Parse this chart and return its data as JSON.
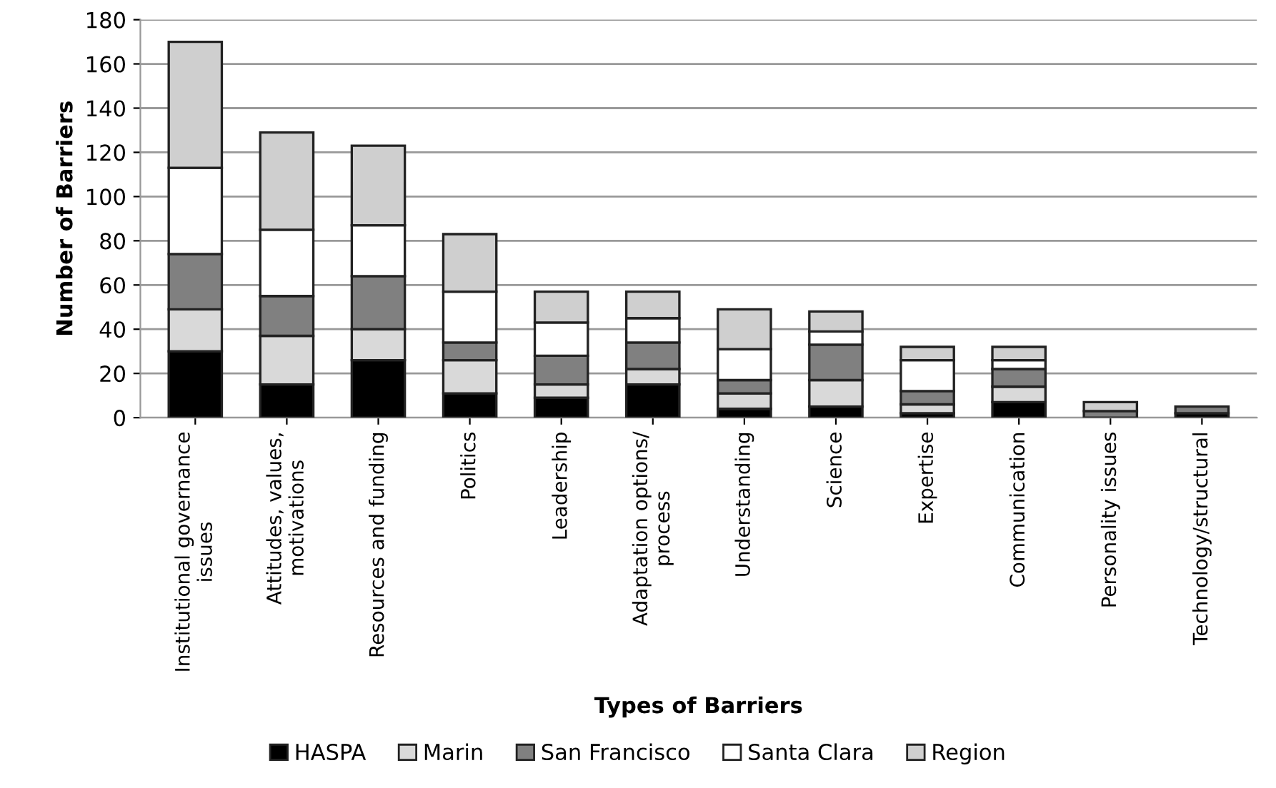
{
  "chart_data": {
    "type": "bar",
    "stacked": true,
    "xlabel": "Types of Barriers",
    "ylabel": "Number of Barriers",
    "categories": [
      "Institutional governance\nissues",
      "Attitudes, values,\nmotivations",
      "Resources and funding",
      "Politics",
      "Leadership",
      "Adaptation options/\nprocess",
      "Understanding",
      "Science",
      "Expertise",
      "Communication",
      "Personality issues",
      "Technology/structural"
    ],
    "series": [
      {
        "name": "HASPA",
        "color": "#000000",
        "values": [
          30,
          15,
          26,
          11,
          9,
          15,
          4,
          5,
          2,
          7,
          0,
          2
        ]
      },
      {
        "name": "Marin",
        "color": "#d9d9d9",
        "values": [
          19,
          22,
          14,
          15,
          6,
          7,
          7,
          12,
          4,
          7,
          0,
          0
        ]
      },
      {
        "name": "San Francisco",
        "color": "#808080",
        "values": [
          25,
          18,
          24,
          8,
          13,
          12,
          6,
          16,
          6,
          8,
          3,
          3
        ]
      },
      {
        "name": "Santa Clara",
        "color": "#ffffff",
        "values": [
          39,
          30,
          23,
          23,
          15,
          11,
          14,
          6,
          14,
          4,
          0,
          0
        ]
      },
      {
        "name": "Region",
        "color": "#cfcfcf",
        "values": [
          57,
          44,
          36,
          26,
          14,
          12,
          18,
          9,
          6,
          6,
          4,
          0
        ]
      }
    ],
    "ylim": [
      0,
      180
    ],
    "yticks": [
      0,
      20,
      40,
      60,
      80,
      100,
      120,
      140,
      160,
      180
    ],
    "grid": "y",
    "legend": "bottom"
  }
}
